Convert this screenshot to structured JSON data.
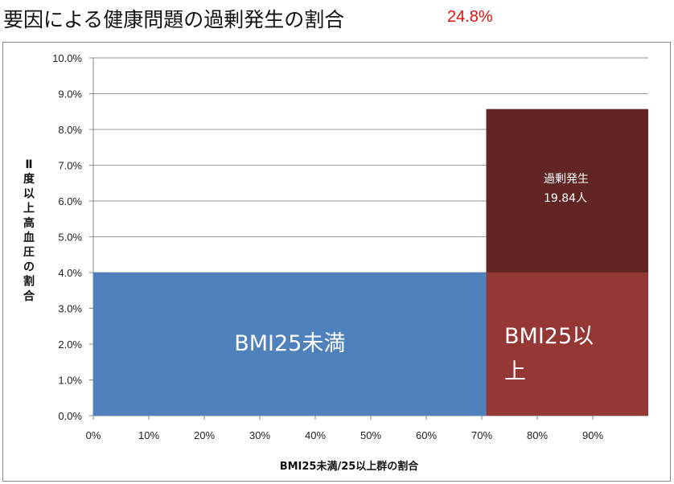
{
  "header": {
    "title": "要因による健康問題の過剰発生の割合",
    "highlight": "24.8%"
  },
  "chart_data": {
    "type": "area",
    "xlabel": "BMI25未満/25以上群の割合",
    "ylabel": "Ⅱ度以上高血圧の割合",
    "x_ticks": [
      "0%",
      "10%",
      "20%",
      "30%",
      "40%",
      "50%",
      "60%",
      "70%",
      "80%",
      "90%"
    ],
    "y_ticks": [
      "0.0%",
      "1.0%",
      "2.0%",
      "3.0%",
      "4.0%",
      "5.0%",
      "6.0%",
      "7.0%",
      "8.0%",
      "9.0%",
      "10.0%"
    ],
    "xlim": [
      0,
      1
    ],
    "ylim": [
      0,
      0.1
    ],
    "grid": true,
    "blocks": [
      {
        "label": "BMI25未満",
        "x0": 0,
        "x1": 0.708,
        "y0": 0,
        "y1": 0.04,
        "color": "#4f81bd"
      },
      {
        "label": "BMI25以上",
        "x0": 0.708,
        "x1": 1.0,
        "y0": 0,
        "y1": 0.04,
        "color": "#953735"
      },
      {
        "label": "過剰発生",
        "sublabel": "19.84人",
        "x0": 0.708,
        "x1": 1.0,
        "y0": 0.04,
        "y1": 0.0857,
        "color": "#632523"
      }
    ]
  }
}
